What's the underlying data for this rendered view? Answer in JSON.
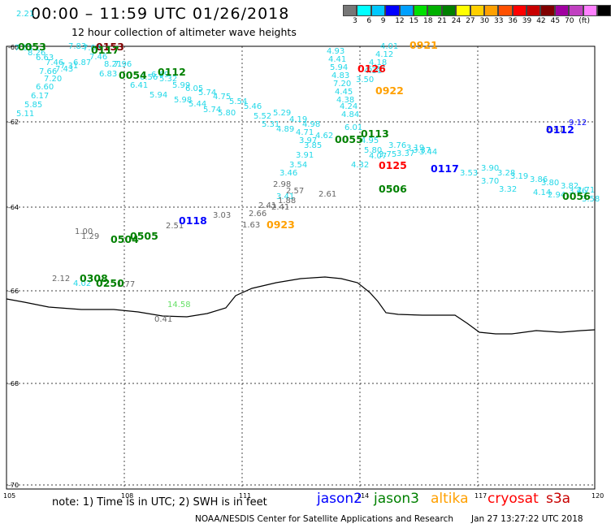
{
  "header": {
    "title": "00:00 – 11:59 UTC 01/26/2018",
    "subtitle": "12 hour collection of altimeter wave heights"
  },
  "colorbar": {
    "colors": [
      "#777777",
      "#00ffff",
      "#00c8ff",
      "#0000ff",
      "#00a0ff",
      "#00e000",
      "#00b000",
      "#008000",
      "#ffff00",
      "#ffd000",
      "#ffa000",
      "#ff5000",
      "#ff0000",
      "#c80000",
      "#800000",
      "#a000a0",
      "#c040c0",
      "#ff80ff",
      "#000000"
    ],
    "labels": [
      "3",
      "6",
      "9",
      "12",
      "15",
      "18",
      "21",
      "24",
      "27",
      "30",
      "33",
      "36",
      "39",
      "42",
      "45",
      "70",
      "(ft)"
    ]
  },
  "axes": {
    "lat_labels": [
      "-60",
      "-62",
      "-64",
      "-66",
      "-68",
      "-70"
    ],
    "lon_labels": [
      "105",
      "108",
      "111",
      "114",
      "117",
      "120"
    ]
  },
  "tracks": {
    "times": [
      {
        "t": "0053",
        "c": "#008000"
      },
      {
        "t": "0153",
        "c": "#800000"
      },
      {
        "t": "0117",
        "c": "#008000"
      },
      {
        "t": "0112",
        "c": "#008000"
      },
      {
        "t": "0054",
        "c": "#008000"
      },
      {
        "t": "0921",
        "c": "#ffa000"
      },
      {
        "t": "0126",
        "c": "#ff0000"
      },
      {
        "t": "0922",
        "c": "#ffa000"
      },
      {
        "t": "0113",
        "c": "#008000"
      },
      {
        "t": "0055",
        "c": "#008000"
      },
      {
        "t": "0125",
        "c": "#ff0000"
      },
      {
        "t": "0117",
        "c": "#0000ff"
      },
      {
        "t": "0506",
        "c": "#008000"
      },
      {
        "t": "0056",
        "c": "#008000"
      },
      {
        "t": "0923",
        "c": "#ffa000"
      },
      {
        "t": "0118",
        "c": "#0000ff"
      },
      {
        "t": "0505",
        "c": "#008000"
      },
      {
        "t": "0504",
        "c": "#008000"
      },
      {
        "t": "0308",
        "c": "#008000"
      },
      {
        "t": "0250",
        "c": "#008000"
      },
      {
        "t": "0112",
        "c": "#0000ff"
      }
    ],
    "values": [
      "7.63",
      "7.83",
      "8.26",
      "7.03",
      "7.46",
      "6.63",
      "7.46",
      "7.31",
      "6.87",
      "8.21",
      "7.66",
      "7.43",
      "7.20",
      "6.83",
      "6.60",
      "6.17",
      "5.85",
      "5.11",
      "7.96",
      "6.41",
      "6.56",
      "6.69",
      "5.32",
      "5.99",
      "6.05",
      "5.94",
      "5.74",
      "5.98",
      "4.75",
      "5.44",
      "5.54",
      "5.74",
      "5.46",
      "5.80",
      "5.52",
      "5.29",
      "5.31",
      "4.89",
      "4.19",
      "4.71",
      "4.98",
      "3.97",
      "4.62",
      "3.85",
      "4.93",
      "4.41",
      "5.94",
      "4.83",
      "7.20",
      "4.45",
      "4.38",
      "4.24",
      "4.84",
      "3.50",
      "4.01",
      "4.12",
      "4.18",
      "4.31",
      "5.28",
      "6.01",
      "4.95",
      "5.80",
      "3.91",
      "3.54",
      "3.46",
      "2.98",
      "4.32",
      "4.07",
      "3.75",
      "3.76",
      "3.37",
      "3.19",
      "3.44",
      "3.37",
      "3.53",
      "3.90",
      "3.28",
      "3.19",
      "3.86",
      "3.80",
      "3.82",
      "3.70",
      "3.32",
      "4.14",
      "2.94",
      "2.71",
      "3.46",
      "3.58",
      "3.41",
      "2.61",
      "2.57",
      "3.03",
      "2.66",
      "1.63",
      "1.88",
      "2.41",
      "2.41",
      "2.51",
      "1.29",
      "1.00",
      "2.12",
      "4.02",
      "1.77",
      "14.58",
      "0.41",
      "2.41",
      "9.12",
      "2.21"
    ]
  },
  "notes": {
    "note": "note: 1) Time is in UTC; 2) SWH is in feet",
    "legend": [
      {
        "name": "jason2",
        "color": "#0000ff"
      },
      {
        "name": "jason3",
        "color": "#008000"
      },
      {
        "name": "altika",
        "color": "#ffa000"
      },
      {
        "name": "cryosat",
        "color": "#ff0000"
      },
      {
        "name": "s3a",
        "color": "#c80000"
      }
    ],
    "credit": "NOAA/NESDIS Center for Satellite Applications and Research",
    "timestamp": "Jan 27 13:27:22 UTC 2018"
  }
}
